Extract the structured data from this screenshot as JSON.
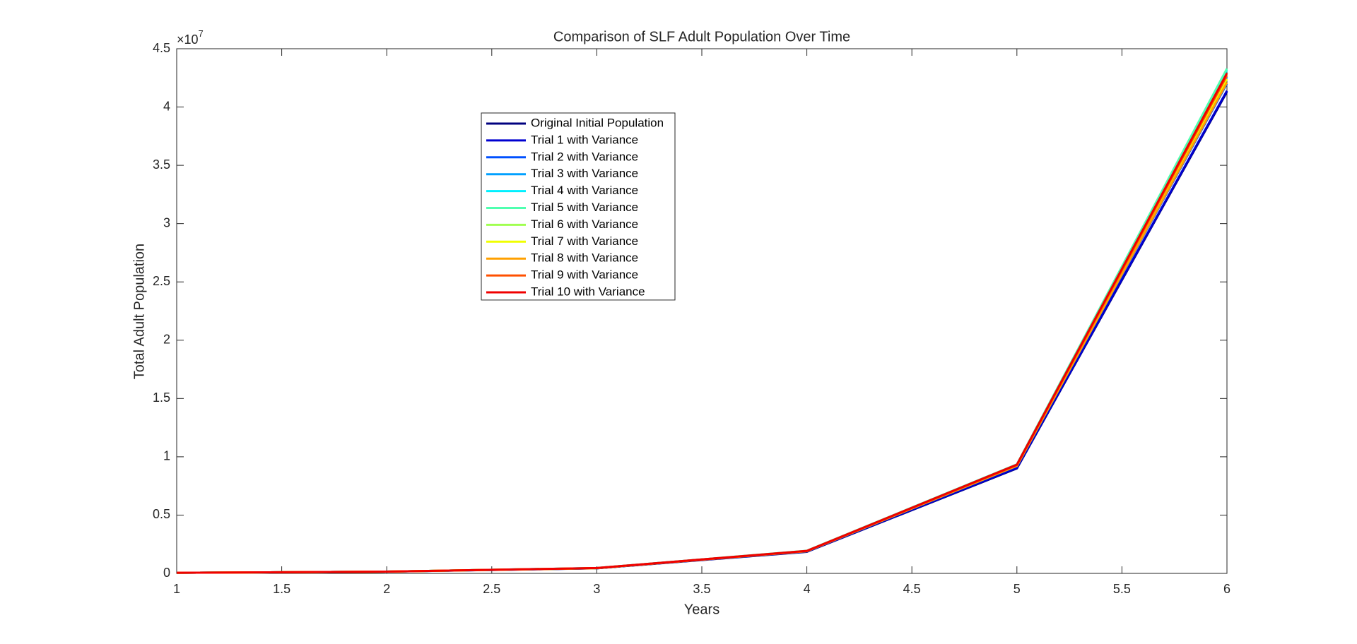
{
  "chart_data": {
    "type": "line",
    "title": "Comparison of SLF Adult Population Over Time",
    "x_label": "Years",
    "y_label": "Total Adult Population",
    "y_multiplier": {
      "base": "×10",
      "exponent": "7"
    },
    "x": [
      1,
      2,
      3,
      4,
      5,
      6
    ],
    "xlim": [
      1,
      6
    ],
    "xticks": [
      1,
      1.5,
      2,
      2.5,
      3,
      3.5,
      4,
      4.5,
      5,
      5.5,
      6
    ],
    "ylim": [
      0,
      45000000
    ],
    "yticks": [
      {
        "value": 0,
        "label": "0"
      },
      {
        "value": 5000000,
        "label": "0.5"
      },
      {
        "value": 10000000,
        "label": "1"
      },
      {
        "value": 15000000,
        "label": "1.5"
      },
      {
        "value": 20000000,
        "label": "2"
      },
      {
        "value": 25000000,
        "label": "2.5"
      },
      {
        "value": 30000000,
        "label": "3"
      },
      {
        "value": 35000000,
        "label": "3.5"
      },
      {
        "value": 40000000,
        "label": "4"
      },
      {
        "value": 45000000,
        "label": "4.5"
      }
    ],
    "grid": false,
    "legend": "upper-center-left",
    "series": [
      {
        "name": "Original Initial Population",
        "color": "#00007f",
        "values": [
          50000,
          150000,
          430000,
          1850000,
          9000000,
          41300000
        ]
      },
      {
        "name": "Trial 1 with Variance",
        "color": "#0000d0",
        "values": [
          50000,
          150000,
          440000,
          1870000,
          9050000,
          41400000
        ]
      },
      {
        "name": "Trial 2 with Variance",
        "color": "#0050ff",
        "values": [
          50000,
          150000,
          450000,
          1900000,
          9200000,
          42000000
        ]
      },
      {
        "name": "Trial 3 with Variance",
        "color": "#00a0ff",
        "values": [
          50000,
          150000,
          460000,
          1920000,
          9300000,
          42600000
        ]
      },
      {
        "name": "Trial 4 with Variance",
        "color": "#00f0ff",
        "values": [
          50000,
          150000,
          460000,
          1940000,
          9350000,
          43200000
        ]
      },
      {
        "name": "Trial 5 with Variance",
        "color": "#50ffb0",
        "values": [
          50000,
          150000,
          460000,
          1940000,
          9350000,
          43300000
        ]
      },
      {
        "name": "Trial 6 with Variance",
        "color": "#a0ff50",
        "values": [
          50000,
          150000,
          455000,
          1930000,
          9320000,
          42800000
        ]
      },
      {
        "name": "Trial 7 with Variance",
        "color": "#f0ff00",
        "values": [
          50000,
          150000,
          450000,
          1910000,
          9250000,
          42400000
        ]
      },
      {
        "name": "Trial 8 with Variance",
        "color": "#ffa000",
        "values": [
          50000,
          150000,
          450000,
          1900000,
          9220000,
          42100000
        ]
      },
      {
        "name": "Trial 9 with Variance",
        "color": "#ff5000",
        "values": [
          50000,
          150000,
          455000,
          1920000,
          9300000,
          42700000
        ]
      },
      {
        "name": "Trial 10 with Variance",
        "color": "#f00000",
        "values": [
          50000,
          150000,
          460000,
          1930000,
          9330000,
          42900000
        ]
      }
    ]
  }
}
